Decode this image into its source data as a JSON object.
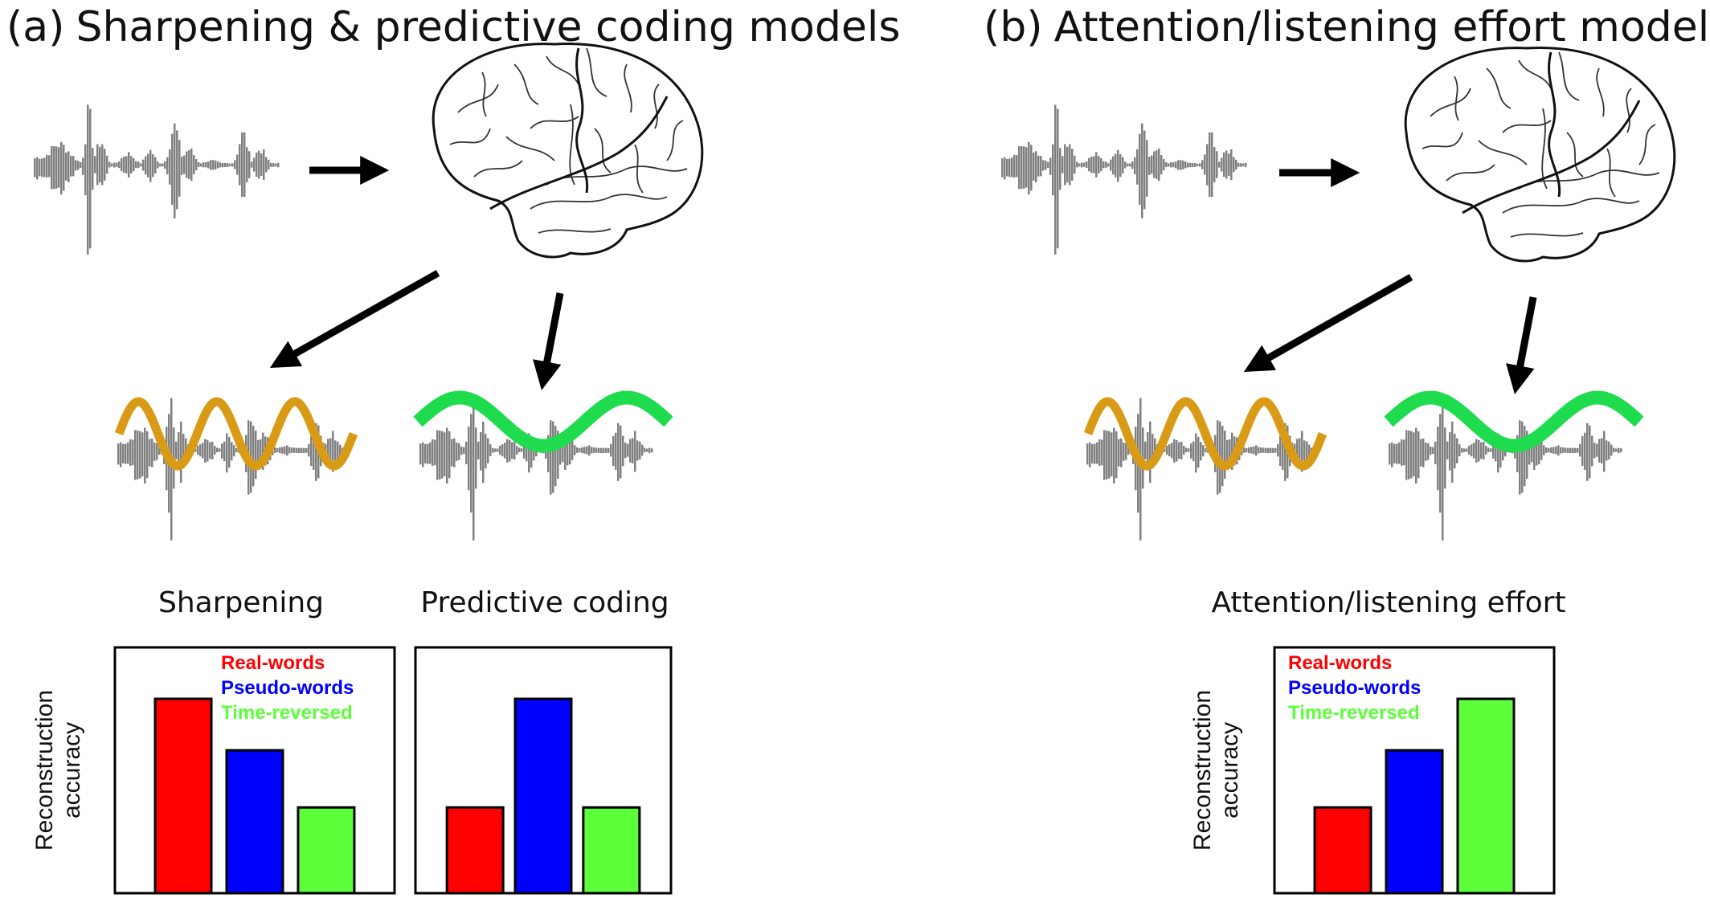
{
  "panel_a": {
    "tag": "(a)",
    "title": "Sharpening & predictive coding models"
  },
  "panel_b": {
    "tag": "(b)",
    "title": "Attention/listening effort model"
  },
  "conditions": {
    "sharpening": "Sharpening",
    "predictive_coding": "Predictive coding",
    "attention": "Attention/listening effort"
  },
  "oscillation_colors": {
    "fast": "#d99a15",
    "slow": "#1fdb4e"
  },
  "waveform_color": "#808080",
  "icons": [
    "speech-waveform-icon",
    "brain-icon",
    "arrow-icon"
  ],
  "chart_data": [
    {
      "type": "bar",
      "panel": "a",
      "condition": "Sharpening",
      "ylabel": "Reconstruction accuracy",
      "categories": [
        "Real-words",
        "Pseudo-words",
        "Time-reversed"
      ],
      "values": [
        3.4,
        2.5,
        1.5
      ],
      "colors": [
        "#ff0000",
        "#0000ff",
        "#5cff3a"
      ],
      "legend": [
        "Real-words",
        "Pseudo-words",
        "Time-reversed"
      ],
      "legend_position": "top-right",
      "ylim": [
        0,
        4.3
      ]
    },
    {
      "type": "bar",
      "panel": "a",
      "condition": "Predictive coding",
      "ylabel": "",
      "categories": [
        "Real-words",
        "Pseudo-words",
        "Time-reversed"
      ],
      "values": [
        1.5,
        3.4,
        1.5
      ],
      "colors": [
        "#ff0000",
        "#0000ff",
        "#5cff3a"
      ],
      "ylim": [
        0,
        4.3
      ]
    },
    {
      "type": "bar",
      "panel": "b",
      "condition": "Attention/listening effort",
      "ylabel": "Reconstruction accuracy",
      "categories": [
        "Real-words",
        "Pseudo-words",
        "Time-reversed"
      ],
      "values": [
        1.5,
        2.5,
        3.4
      ],
      "colors": [
        "#ff0000",
        "#0000ff",
        "#5cff3a"
      ],
      "legend": [
        "Real-words",
        "Pseudo-words",
        "Time-reversed"
      ],
      "legend_position": "top-left",
      "ylim": [
        0,
        4.3
      ]
    }
  ]
}
